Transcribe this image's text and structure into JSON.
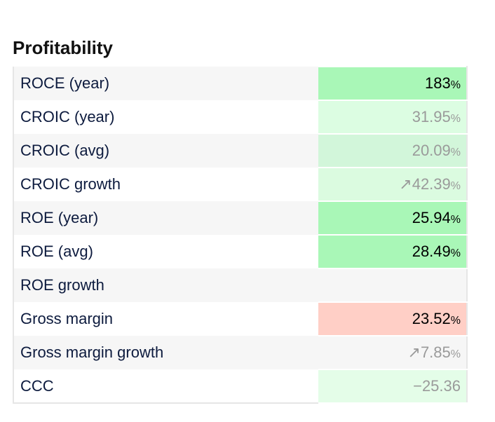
{
  "section": {
    "title": "Profitability"
  },
  "rows": [
    {
      "label": "ROCE (year)",
      "arrow": "",
      "value": "183",
      "unit": "%"
    },
    {
      "label": "CROIC (year)",
      "arrow": "",
      "value": "31.95",
      "unit": "%"
    },
    {
      "label": "CROIC (avg)",
      "arrow": "",
      "value": "20.09",
      "unit": "%"
    },
    {
      "label": "CROIC growth",
      "arrow": "↗",
      "value": "42.39",
      "unit": "%"
    },
    {
      "label": "ROE (year)",
      "arrow": "",
      "value": "25.94",
      "unit": "%"
    },
    {
      "label": "ROE (avg)",
      "arrow": "",
      "value": "28.49",
      "unit": "%"
    },
    {
      "label": "ROE growth",
      "arrow": "",
      "value": "",
      "unit": ""
    },
    {
      "label": "Gross margin",
      "arrow": "",
      "value": "23.52",
      "unit": "%"
    },
    {
      "label": "Gross margin growth",
      "arrow": "↗",
      "value": "7.85",
      "unit": "%"
    },
    {
      "label": "CCC",
      "arrow": "",
      "value": "−25.36",
      "unit": ""
    }
  ],
  "colors": {
    "strong_positive": "#a9f7b7",
    "light_positive": "#dcfde2",
    "negative": "#ffcfc6",
    "neutral": "#f6f6f6"
  }
}
